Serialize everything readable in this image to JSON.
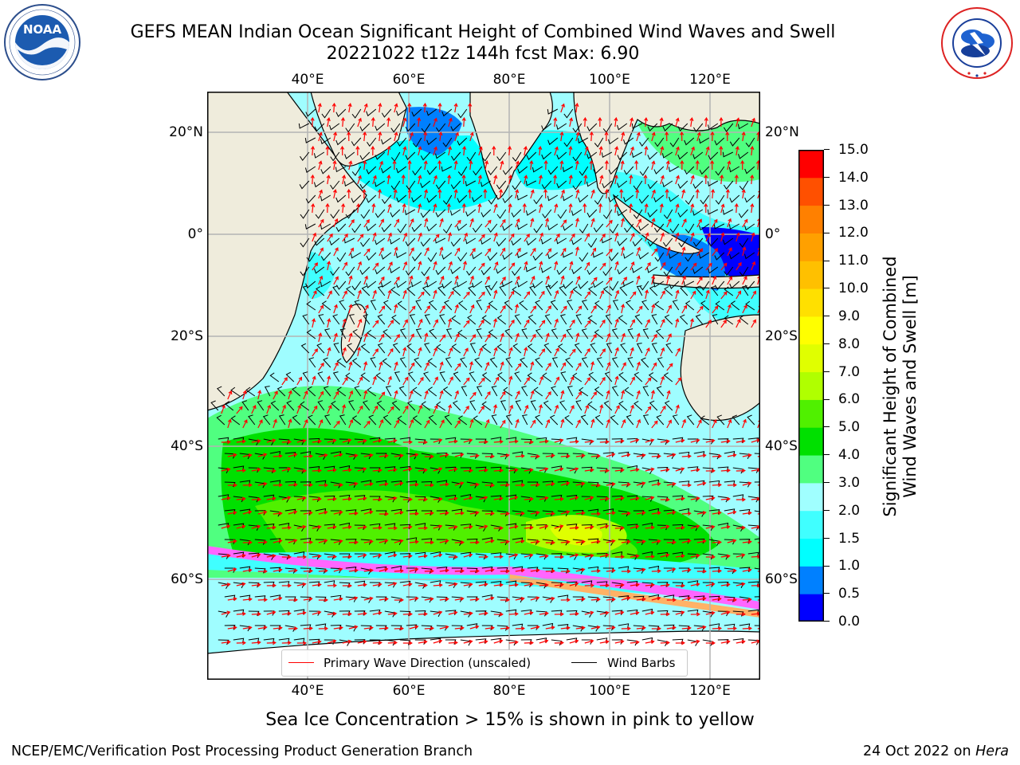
{
  "title": {
    "line1": "GEFS MEAN Indian Ocean Significant Height of Combined Wind Waves and Swell",
    "line2": "20221022 t12z 144h fcst   Max: 6.90"
  },
  "logos": {
    "left": {
      "name": "noaa-logo",
      "text": "NOAA",
      "ring_text": "NATIONAL OCEANIC AND ATMOSPHERIC ADMINISTRATION · U.S. DEPARTMENT OF COMMERCE"
    },
    "right": {
      "name": "nws-logo",
      "ring_text": "NATIONAL WEATHER SERVICE"
    }
  },
  "map": {
    "lon_range": [
      20,
      129
    ],
    "lat_range": [
      -68,
      27
    ],
    "lon_ticks": [
      "40°E",
      "60°E",
      "80°E",
      "100°E",
      "120°E"
    ],
    "lat_ticks_left": [
      "20°N",
      "0°",
      "20°S",
      "40°S",
      "60°S"
    ],
    "lat_ticks_right": [
      "20°N",
      "0°",
      "20°S",
      "40°S",
      "60°S"
    ],
    "land_color": "#efecdc",
    "ocean_base_color": "#9ffdff",
    "ice_colors": [
      "#ff66ff",
      "#ffb266",
      "#ffff66"
    ],
    "vector_colors": {
      "wave_direction": "#ff0000",
      "wind_barbs": "#000000"
    }
  },
  "legend": {
    "wave_label": "Primary Wave Direction (unscaled)",
    "wind_label": "Wind Barbs"
  },
  "colorbar": {
    "label_line1": "Significant Height of Combined",
    "label_line2": "Wind Waves and Swell [m]",
    "ticks": [
      "0.0",
      "0.5",
      "1.0",
      "1.5",
      "2.0",
      "3.0",
      "4.0",
      "5.0",
      "6.0",
      "7.0",
      "8.0",
      "9.0",
      "10.0",
      "11.0",
      "12.0",
      "13.0",
      "14.0",
      "15.0"
    ],
    "colors": [
      "#0000ff",
      "#0080ff",
      "#00ffff",
      "#40ffff",
      "#a0ffff",
      "#50ff80",
      "#00e000",
      "#50f000",
      "#b0ff00",
      "#e0ff00",
      "#ffff00",
      "#ffe000",
      "#ffc000",
      "#ffa000",
      "#ff8000",
      "#ff5000",
      "#ff0000"
    ]
  },
  "ice_note": "Sea Ice Concentration > 15% is shown in pink to yellow",
  "footer": {
    "left": "NCEP/EMC/Verification Post Processing Product Generation Branch",
    "right_prefix": "24 Oct 2022 on ",
    "right_machine": "Hera"
  }
}
